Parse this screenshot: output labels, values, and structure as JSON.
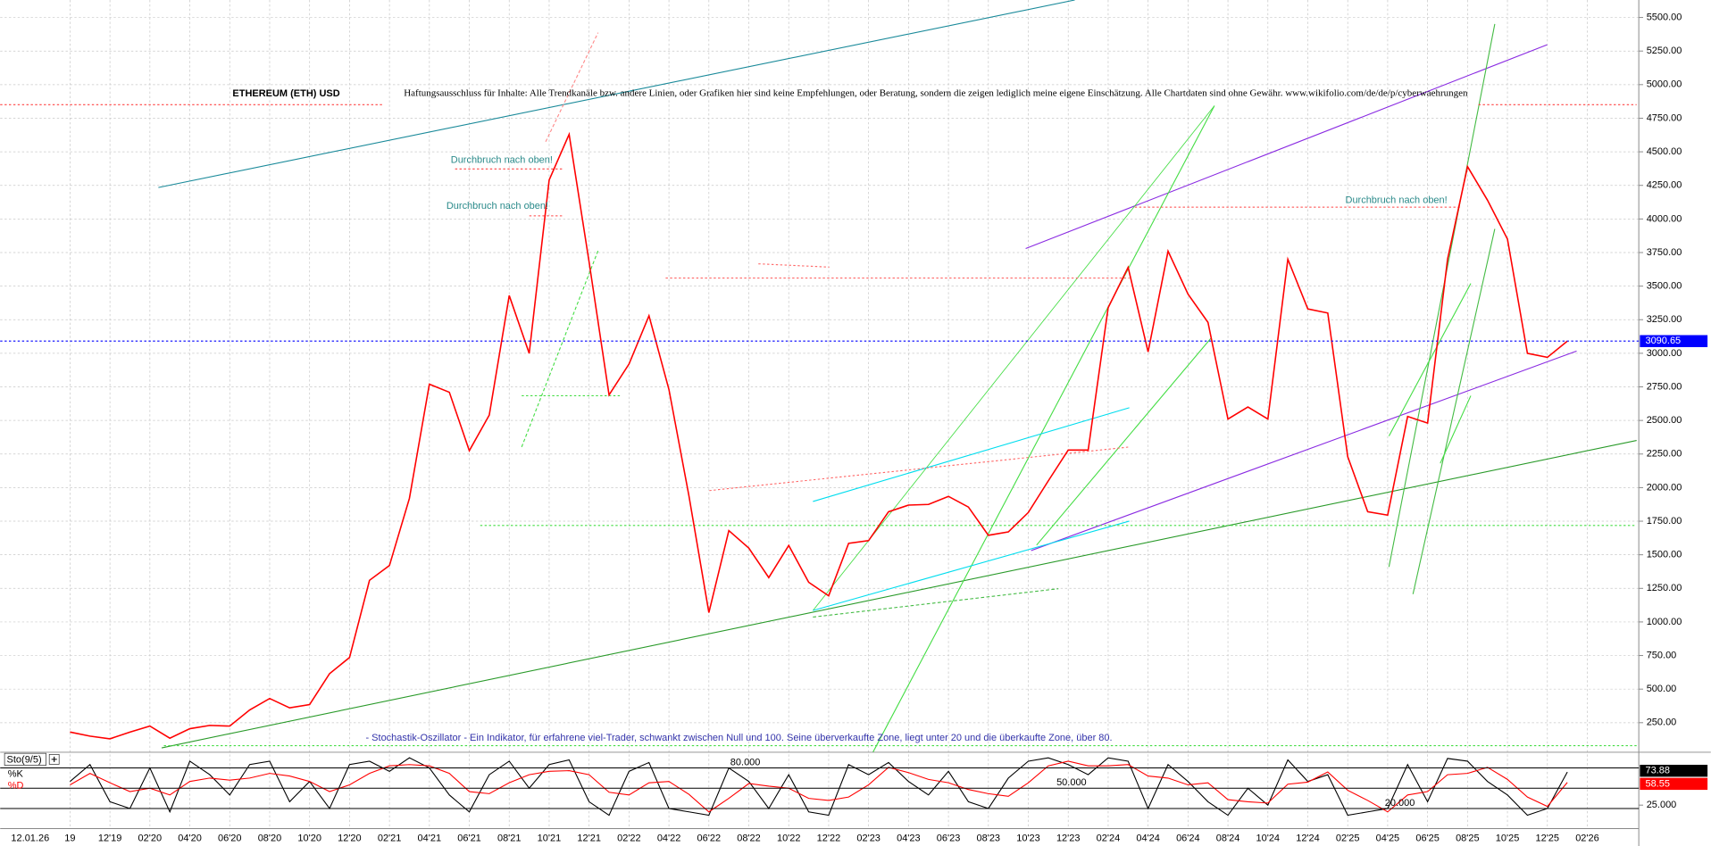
{
  "chart_data": [
    {
      "type": "line",
      "title": "ETHEREUM (ETH) USD",
      "subtitle": "Haftungsausschluss für Inhalte: Alle Trendkanäle bzw. andere Linien, oder Grafiken hier sind keine Empfehlungen, oder Beratung, sondern die zeigen lediglich meine eigene Einschätzung. Alle Chartdaten sind ohne Gewähr. www.wikifolio.com/de/de/p/cyberwaehrungen",
      "annotations": [
        "Durchbruch nach oben!",
        "Durchbruch nach oben!",
        "Durchbruch nach oben!"
      ],
      "note": "- Stochastik-Oszillator - Ein Indikator, für erfahrene viel-Trader, schwankt zwischen Null und 100. Seine überverkaufte Zone, liegt unter 20 und die überkaufte Zone, über 80.",
      "date_label": "12.01.26",
      "categories": [
        "19",
        null,
        "12'19",
        null,
        "02'20",
        null,
        "04'20",
        null,
        "06'20",
        null,
        "08'20",
        null,
        "10'20",
        null,
        "12'20",
        null,
        "02'21",
        null,
        "04'21",
        null,
        "06'21",
        null,
        "08'21",
        null,
        "10'21",
        null,
        "12'21",
        null,
        "02'22",
        null,
        "04'22",
        null,
        "06'22",
        null,
        "08'22",
        null,
        "10'22",
        null,
        "12'22",
        null,
        "02'23",
        null,
        "04'23",
        null,
        "06'23",
        null,
        "08'23",
        null,
        "10'23",
        null,
        "12'23",
        null,
        "02'24",
        null,
        "04'24",
        null,
        "06'24",
        null,
        "08'24",
        null,
        "10'24",
        null,
        "12'24",
        null,
        "02'25",
        null,
        "04'25",
        null,
        "06'25",
        null,
        "08'25",
        null,
        "10'25",
        null,
        "12'25",
        null,
        "02'26"
      ],
      "values": [
        180,
        150,
        130,
        180,
        225,
        135,
        205,
        230,
        225,
        345,
        430,
        360,
        385,
        615,
        735,
        1310,
        1420,
        1920,
        2770,
        2710,
        2275,
        2540,
        3430,
        3000,
        4290,
        4630,
        3680,
        2690,
        2920,
        3280,
        2730,
        1940,
        1070,
        1680,
        1550,
        1330,
        1570,
        1295,
        1195,
        1585,
        1605,
        1820,
        1870,
        1875,
        1935,
        1855,
        1645,
        1670,
        1815,
        2050,
        2280,
        2280,
        3340,
        3640,
        3010,
        3760,
        3440,
        3230,
        2510,
        2600,
        2510,
        3700,
        3330,
        3300,
        2230,
        1820,
        1795,
        2530,
        2480,
        3700,
        4390,
        4140,
        3850,
        3000,
        2970,
        3090.65,
        null
      ],
      "color": "#ff0000",
      "last_value_color": "#0000ff",
      "ylim": [
        30,
        5630
      ],
      "yticks": [
        {
          "value": 250,
          "label": "250.00"
        },
        {
          "value": 500,
          "label": "500.00"
        },
        {
          "value": 750,
          "label": "750.00"
        },
        {
          "value": 1000,
          "label": "1000.00"
        },
        {
          "value": 1250,
          "label": "1250.00"
        },
        {
          "value": 1500,
          "label": "1500.00"
        },
        {
          "value": 1750,
          "label": "1750.00"
        },
        {
          "value": 2000,
          "label": "2000.00"
        },
        {
          "value": 2250,
          "label": "2250.00"
        },
        {
          "value": 2500,
          "label": "2500.00"
        },
        {
          "value": 2750,
          "label": "2750.00"
        },
        {
          "value": 3000,
          "label": "3000.00"
        },
        {
          "value": 3250,
          "label": "3250.00"
        },
        {
          "value": 3500,
          "label": "3500.00"
        },
        {
          "value": 3750,
          "label": "3750.00"
        },
        {
          "value": 4000,
          "label": "4000.00"
        },
        {
          "value": 4250,
          "label": "4250.00"
        },
        {
          "value": 4500,
          "label": "4500.00"
        },
        {
          "value": 4750,
          "label": "4750.00"
        },
        {
          "value": 5000,
          "label": "5000.00"
        },
        {
          "value": 5250,
          "label": "5250.00"
        },
        {
          "value": 5500,
          "label": "5500.00"
        }
      ],
      "grid": true
    },
    {
      "type": "line",
      "title": "Sto(9/5)",
      "series": [
        {
          "name": "%K",
          "color": "#000000",
          "values": [
            60,
            85,
            30,
            20,
            80,
            15,
            90,
            70,
            40,
            85,
            90,
            30,
            60,
            20,
            85,
            90,
            75,
            95,
            80,
            40,
            15,
            70,
            90,
            50,
            85,
            92,
            30,
            10,
            75,
            88,
            20,
            15,
            10,
            80,
            60,
            20,
            70,
            15,
            10,
            85,
            70,
            88,
            60,
            40,
            75,
            30,
            20,
            65,
            90,
            95,
            85,
            70,
            95,
            90,
            20,
            85,
            60,
            30,
            10,
            50,
            25,
            92,
            60,
            70,
            10,
            15,
            20,
            85,
            30,
            94,
            90,
            60,
            40,
            10,
            20,
            73.88,
            null
          ]
        },
        {
          "name": "%D",
          "color": "#ff0000",
          "values": [
            55,
            72,
            58,
            45,
            50,
            40,
            60,
            65,
            62,
            65,
            72,
            68,
            60,
            45,
            55,
            72,
            83,
            85,
            83,
            72,
            45,
            42,
            58,
            70,
            75,
            76,
            70,
            44,
            40,
            58,
            60,
            41,
            15,
            35,
            57,
            53,
            50,
            35,
            32,
            37,
            55,
            81,
            73,
            63,
            58,
            48,
            42,
            38,
            58,
            83,
            90,
            83,
            83,
            85,
            68,
            65,
            55,
            58,
            33,
            30,
            28,
            56,
            59,
            74,
            47,
            32,
            15,
            40,
            45,
            70,
            72,
            81,
            63,
            37,
            23,
            58.55,
            null
          ]
        }
      ],
      "ylim": [
        0,
        100
      ],
      "yticks": [
        {
          "value": 25,
          "label": "25.000"
        }
      ],
      "levels": [
        {
          "value": 80,
          "label": "80.000"
        },
        {
          "value": 50,
          "label": "50.000"
        },
        {
          "value": 20,
          "label": "20.000"
        }
      ]
    }
  ]
}
